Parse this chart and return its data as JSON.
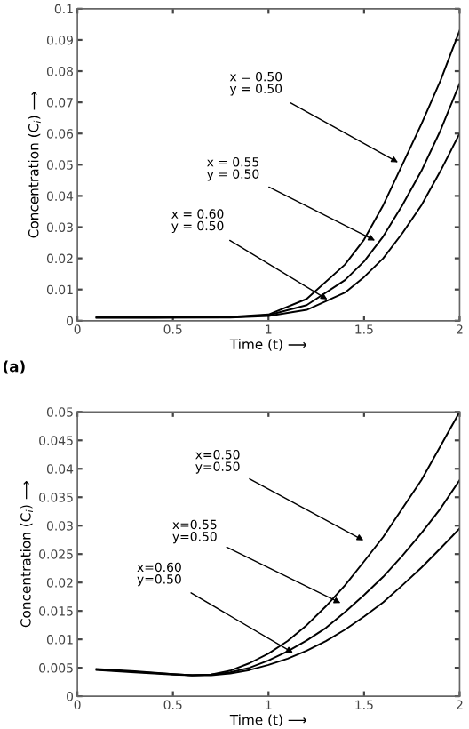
{
  "chart_data": [
    {
      "type": "line",
      "xlabel": "Time (t) ⟶",
      "ylabel": "Concentration (C$_{i}$) ⟶",
      "xlim": [
        0,
        2
      ],
      "ylim": [
        0,
        0.1
      ],
      "xticks": [
        0,
        0.5,
        1,
        1.5,
        2
      ],
      "yticks": [
        0,
        0.01,
        0.02,
        0.03,
        0.04,
        0.05,
        0.06,
        0.07,
        0.08,
        0.09,
        0.1
      ],
      "grid": false,
      "line_style": "solid",
      "marker": "none",
      "x": [
        0.1,
        0.4,
        0.8,
        1.0,
        1.2,
        1.4,
        1.5,
        1.6,
        1.7,
        1.8,
        1.9,
        2.0
      ],
      "series": [
        {
          "color": "#000000",
          "values": [
            0.001,
            0.001,
            0.0012,
            0.002,
            0.007,
            0.018,
            0.026,
            0.037,
            0.05,
            0.063,
            0.077,
            0.093
          ]
        },
        {
          "color": "#000000",
          "values": [
            0.001,
            0.001,
            0.0011,
            0.0018,
            0.005,
            0.013,
            0.019,
            0.027,
            0.037,
            0.048,
            0.061,
            0.076
          ]
        },
        {
          "color": "#000000",
          "values": [
            0.001,
            0.001,
            0.001,
            0.0015,
            0.0035,
            0.009,
            0.014,
            0.02,
            0.028,
            0.037,
            0.048,
            0.06
          ]
        }
      ],
      "annotations": [
        {
          "text": "x = 0.50\ny = 0.50",
          "x": 1.7,
          "y": 0.05
        },
        {
          "text": "x = 0.55\ny = 0.50",
          "x": 1.58,
          "y": 0.025
        },
        {
          "text": "x = 0.60\ny = 0.50",
          "x": 1.33,
          "y": 0.006
        },
        "(a)"
      ]
    },
    {
      "type": "line",
      "xlabel": "Time (t) ⟶",
      "ylabel": "Concentration (C$_{i}$) ⟶",
      "xlim": [
        0,
        2
      ],
      "ylim": [
        0,
        0.05
      ],
      "xticks": [
        0,
        0.5,
        1,
        1.5,
        2
      ],
      "yticks": [
        0,
        0.005,
        0.01,
        0.015,
        0.02,
        0.025,
        0.03,
        0.035,
        0.04,
        0.045,
        0.05
      ],
      "grid": false,
      "line_style": "solid",
      "marker": "none",
      "x": [
        0.1,
        0.3,
        0.5,
        0.6,
        0.7,
        0.8,
        0.9,
        1.0,
        1.1,
        1.2,
        1.3,
        1.4,
        1.5,
        1.6,
        1.7,
        1.8,
        1.9,
        2.0
      ],
      "series": [
        {
          "color": "#000000",
          "values": [
            0.0048,
            0.0044,
            0.0039,
            0.0037,
            0.0038,
            0.0045,
            0.0058,
            0.0075,
            0.0097,
            0.0125,
            0.0158,
            0.0195,
            0.0237,
            0.028,
            0.033,
            0.038,
            0.044,
            0.05
          ]
        },
        {
          "color": "#000000",
          "values": [
            0.0047,
            0.0043,
            0.0039,
            0.0037,
            0.0038,
            0.0042,
            0.005,
            0.0063,
            0.0079,
            0.0098,
            0.012,
            0.0148,
            0.0178,
            0.021,
            0.0247,
            0.0287,
            0.033,
            0.038
          ]
        },
        {
          "color": "#000000",
          "values": [
            0.0046,
            0.0042,
            0.0038,
            0.0037,
            0.0037,
            0.004,
            0.0046,
            0.0055,
            0.0066,
            0.008,
            0.0097,
            0.0117,
            0.014,
            0.0165,
            0.0195,
            0.0226,
            0.026,
            0.0295
          ]
        }
      ],
      "annotations": [
        {
          "text": "x=0.50\ny=0.50",
          "x": 1.52,
          "y": 0.027
        },
        {
          "text": "x=0.55\ny=0.50",
          "x": 1.4,
          "y": 0.016
        },
        {
          "text": "x=0.60\ny=0.50",
          "x": 1.15,
          "y": 0.0072
        }
      ]
    }
  ]
}
